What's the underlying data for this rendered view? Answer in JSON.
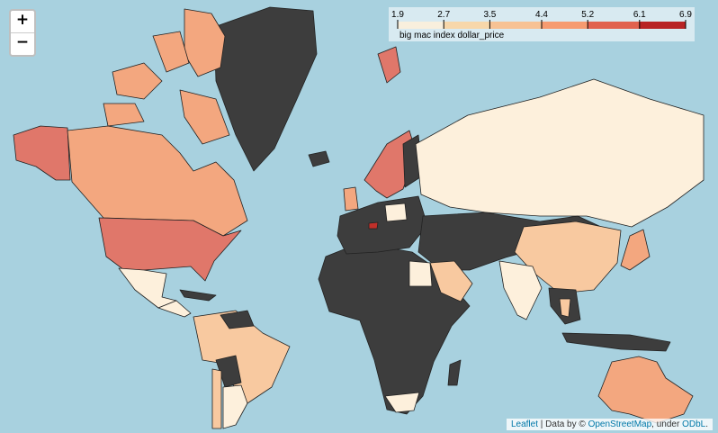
{
  "zoom_controls": {
    "zoom_in": "+",
    "zoom_out": "−"
  },
  "legend": {
    "caption": "big mac index dollar_price",
    "ticks": [
      1.9,
      2.7,
      3.5,
      4.4,
      5.2,
      6.1,
      6.9
    ],
    "colors": [
      "#fef0d9",
      "#fdd49e",
      "#fdbb84",
      "#fc8d59",
      "#e34a33",
      "#b30000"
    ]
  },
  "attribution": {
    "leaflet": "Leaflet",
    "data_by": "| Data by ©",
    "osm": "OpenStreetMap",
    "under": ", under",
    "odbl": "ODbL",
    "end": "."
  }
}
